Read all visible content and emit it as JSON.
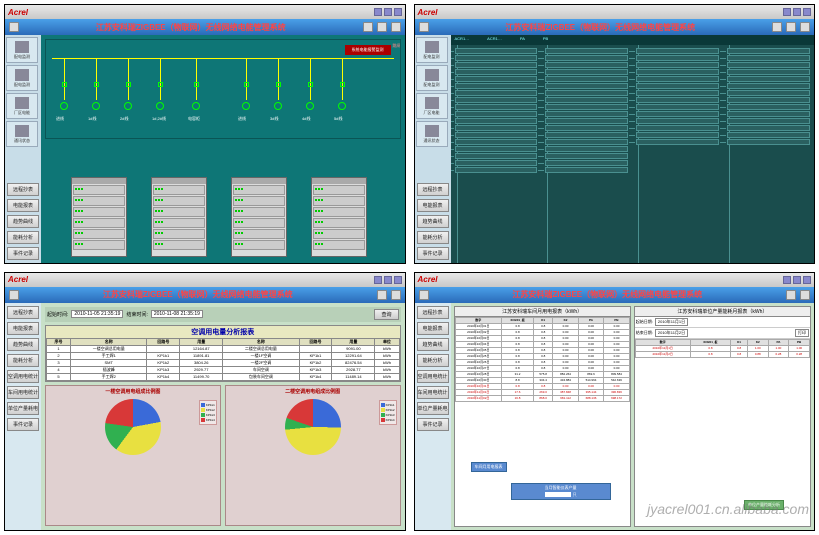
{
  "watermark": "jyacrel001.cn.alibaba.com",
  "brand": "Acrel",
  "title": "江苏安科瑞ZIGBEE（物联网）无线网络电能管理系统",
  "date": "2010/11/19",
  "toolbar": {
    "nav_label": "功能导航"
  },
  "side_icons": [
    "配电监测",
    "配电监测",
    "厂区电能",
    "通讯状态"
  ],
  "side_btns": [
    "远程抄表",
    "电能报表",
    "趋势曲线",
    "能耗分析",
    "事件记录"
  ],
  "p3_side_btns": [
    "远程抄表",
    "电能报表",
    "趋势曲线",
    "能耗分析",
    "空调用电统计",
    "车间用电统计",
    "单位产量耗电",
    "事件记录"
  ],
  "p1": {
    "switch_label": "跳闸",
    "alarm": "系统电能报警监测",
    "bus_labels": [
      "进线",
      "1#线",
      "2#线",
      "1#,2#线",
      "电容柜",
      "进线",
      "3#线",
      "4#线",
      "5#线"
    ],
    "cabinets": 4
  },
  "p2": {
    "headers": [
      "ACR1…",
      "ACR1…",
      "PA",
      "PB"
    ]
  },
  "p3": {
    "query": {
      "start_lbl": "起始时间:",
      "end_lbl": "结束时间:",
      "start": "2010-11-05  21:35:19",
      "end": "2010-11-08  21:35:19",
      "btn": "查询"
    },
    "rpt_title": "空调用电量分析报表",
    "cols": [
      "序号",
      "名称",
      "回路号",
      "用量",
      "名称",
      "回路号",
      "用量",
      "单位"
    ],
    "rows": [
      [
        "1",
        "一楼空调总用电量",
        "",
        "12164.87",
        "二楼空调总用电量",
        "",
        "9091.00",
        "kWh"
      ],
      [
        "2",
        "手工焊1",
        "KP1k1",
        "11891.81",
        "一楼1F空调",
        "KP1k1",
        "12291.64",
        "kWh"
      ],
      [
        "3",
        "SMT",
        "KP1k2",
        "3804.26",
        "一楼2F空调",
        "KP1k2",
        "82476.54",
        "kWh"
      ],
      [
        "4",
        "插波峰",
        "KP1k3",
        "2929.77",
        "车间空调",
        "KP1k3",
        "2928.77",
        "kWh"
      ],
      [
        "5",
        "手工焊2",
        "KP1k4",
        "11499.70",
        "包装车间空调",
        "KP1k4",
        "11489.14",
        "kWh"
      ]
    ],
    "pie1": {
      "title": "一楼空调用电组成比例图",
      "slices": [
        {
          "label": "KP1k1",
          "pct": 22.07,
          "color": "#3a6ad8"
        },
        {
          "label": "KP1k2",
          "pct": 38.13,
          "color": "#e8e040"
        },
        {
          "label": "KP1k3",
          "pct": 17.03,
          "color": "#30b050"
        },
        {
          "label": "KP1k4",
          "pct": 22.77,
          "color": "#d83838"
        }
      ]
    },
    "pie2": {
      "title": "二楼空调用电组成比例图",
      "slices": [
        {
          "label": "KP1k1",
          "pct": 25.27,
          "color": "#3a6ad8"
        },
        {
          "label": "KP1k2",
          "pct": 48.18,
          "color": "#e8e040"
        },
        {
          "label": "KP1k3",
          "pct": 6.81,
          "color": "#30b050"
        },
        {
          "label": "KP1k4",
          "pct": 19.74,
          "color": "#d83838"
        }
      ]
    }
  },
  "p4": {
    "t1": {
      "title": "江苏安科瑞车间月用电报表（kWh）",
      "cols": [
        "数字",
        "XCB01_板",
        "K1",
        "K2",
        "PA",
        "PB"
      ],
      "rows": [
        [
          "2010年10月01日",
          "0.8",
          "0.8",
          "0.00",
          "0.00",
          "0.00"
        ],
        [
          "2010年10月02日",
          "0.8",
          "0.8",
          "0.00",
          "0.00",
          "0.00"
        ],
        [
          "2010年10月03日",
          "0.8",
          "0.8",
          "0.00",
          "0.00",
          "0.00"
        ],
        [
          "2010年10月04日",
          "0.8",
          "0.8",
          "0.00",
          "0.00",
          "0.00"
        ],
        [
          "2010年10月05日",
          "0.8",
          "0.8",
          "0.00",
          "0.00",
          "0.00"
        ],
        [
          "2010年10月25日",
          "0.8",
          "0.8",
          "0.00",
          "0.00",
          "0.00"
        ],
        [
          "2010年10月26日",
          "0.8",
          "0.8",
          "0.00",
          "0.00",
          "0.00"
        ],
        [
          "2010年10月27日",
          "0.8",
          "0.8",
          "0.00",
          "0.00",
          "0.00"
        ],
        [
          "2010年10月28日",
          "31.2",
          "575.8",
          "882.264",
          "869.6",
          "809.584"
        ],
        [
          "2010年10月30日",
          "8.8",
          "334.4",
          "434.884",
          "514.964",
          "542.636"
        ],
        [
          "2010年10月31日",
          "0.8",
          "0.8",
          "0.00",
          "0.00",
          "0.00"
        ],
        [
          "2010年11月01日",
          "17.6",
          "269.0",
          "387.848",
          "395.144",
          "396.836"
        ],
        [
          "2010年11月02日",
          "16.8",
          "868.0",
          "681.112",
          "688.136",
          "698.172"
        ]
      ]
    },
    "t2": {
      "title": "江苏安科瑞单位产量能耗月报表（kWh）",
      "start_lbl": "起始日期:",
      "start": "2010年11月1日",
      "end_lbl": "结束日期:",
      "end": "2010年11月2日",
      "btn": "打印",
      "cols": [
        "数字",
        "XCB01_板",
        "K1",
        "K2",
        "PA",
        "PB"
      ],
      "rows": [
        [
          "2010年11月1日",
          "0.8",
          "0.8",
          "1.00",
          "1.00",
          "1.00"
        ],
        [
          "2010年11月2日",
          "0.8",
          "0.8",
          "0.88",
          "0.28",
          "0.28"
        ]
      ]
    },
    "blu1": "车间月用电报表",
    "blu2": "当月智能仪表产量",
    "blu2_unit": "只",
    "grn": "单位产量能耗分析"
  }
}
